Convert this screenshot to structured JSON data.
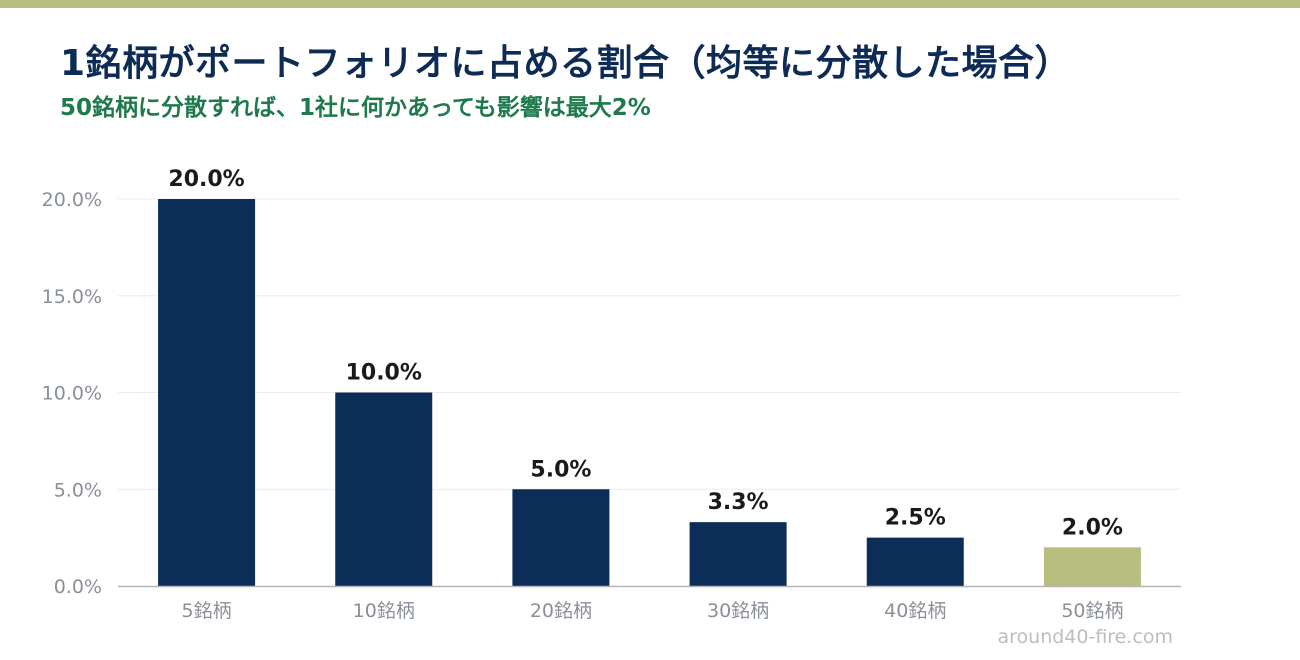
{
  "title": "1銘柄がポートフォリオに占める割合（均等に分散した場合）",
  "subtitle": "50銘柄に分散すれば、1社に何かあっても影響は最大2%",
  "watermark": "around40-fire.com",
  "colors": {
    "accent_bar": "#b8bd80",
    "bar_default": "#0c2d57",
    "bar_highlight": "#b8bd80",
    "title": "#0d2b55",
    "subtitle": "#1e7a4c"
  },
  "chart_data": {
    "type": "bar",
    "categories": [
      "5銘柄",
      "10銘柄",
      "20銘柄",
      "30銘柄",
      "40銘柄",
      "50銘柄"
    ],
    "values": [
      20.0,
      10.0,
      5.0,
      3.3,
      2.5,
      2.0
    ],
    "data_labels": [
      "20.0%",
      "10.0%",
      "5.0%",
      "3.3%",
      "2.5%",
      "2.0%"
    ],
    "highlight_index": 5,
    "ylim": [
      0,
      20
    ],
    "yticks": [
      0,
      5,
      10,
      15,
      20
    ],
    "ytick_labels": [
      "0.0%",
      "5.0%",
      "10.0%",
      "15.0%",
      "20.0%"
    ],
    "grid": true,
    "xlabel": "",
    "ylabel": ""
  }
}
